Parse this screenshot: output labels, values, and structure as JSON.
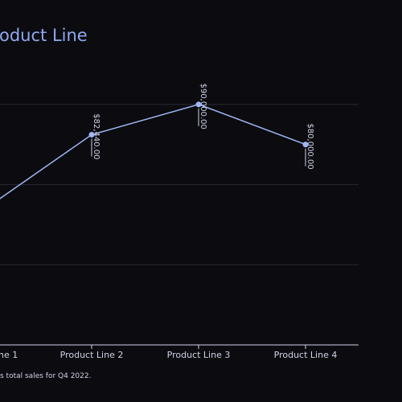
{
  "colors": {
    "background": "#0b0b10",
    "line": "#9fb7f2",
    "grid": "#2b2b35",
    "text": "#cfd3e6",
    "title": "#8fa8f0"
  },
  "annotation": {
    "text": "s total sales for Q4 2022."
  },
  "chart_data": {
    "type": "line",
    "title": "oduct Line",
    "categories": [
      "ne 1",
      "Product Line 2",
      "Product Line 3",
      "Product Line 4"
    ],
    "values": [
      64000,
      82440,
      90000,
      80000
    ],
    "data_labels": [
      null,
      "$82,440.00",
      "$90,000.00",
      "$80,000.00"
    ],
    "ylim": [
      30000,
      100000
    ],
    "grid": true,
    "legend": "none"
  }
}
